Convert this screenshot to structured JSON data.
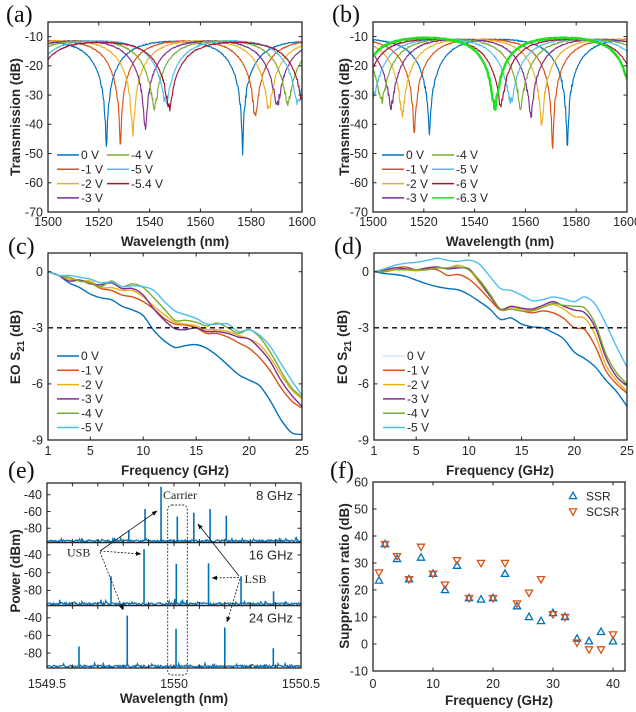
{
  "chart_data": [
    {
      "panel_label": "(a)",
      "type": "line",
      "title": "",
      "xlabel": "Wavelength (nm)",
      "ylabel": "Transmission (dB)",
      "xlim": [
        1500,
        1600
      ],
      "ylim": [
        -70,
        -5
      ],
      "xticks": [
        1500,
        1520,
        1540,
        1560,
        1580,
        1600
      ],
      "yticks": [
        -70,
        -60,
        -50,
        -40,
        -30,
        -20,
        -10
      ],
      "grid": false,
      "legend": "lower-left",
      "series": [
        {
          "name": "0 V",
          "color": "#0072BD",
          "max_transmission_db": -9.2,
          "resonances": [
            {
              "wavelength_nm": 1523.0,
              "min_db": -49
            },
            {
              "wavelength_nm": 1576.6,
              "min_db": -49
            }
          ]
        },
        {
          "name": "-1 V",
          "color": "#D95319",
          "max_transmission_db": -9.0,
          "resonances": [
            {
              "wavelength_nm": 1528.5,
              "min_db": -48
            },
            {
              "wavelength_nm": 1581.6,
              "min_db": -38
            }
          ]
        },
        {
          "name": "-2 V",
          "color": "#EDB120",
          "max_transmission_db": -9.0,
          "resonances": [
            {
              "wavelength_nm": 1533.4,
              "min_db": -44.5
            },
            {
              "wavelength_nm": 1586.9,
              "min_db": -35.5
            }
          ]
        },
        {
          "name": "-3 V",
          "color": "#7E2F8E",
          "max_transmission_db": -9.0,
          "resonances": [
            {
              "wavelength_nm": 1538.3,
              "min_db": -42
            },
            {
              "wavelength_nm": 1590.2,
              "min_db": -33.5
            }
          ]
        },
        {
          "name": "-4 V",
          "color": "#77AC30",
          "max_transmission_db": -9.0,
          "resonances": [
            {
              "wavelength_nm": 1541.9,
              "min_db": -35
            },
            {
              "wavelength_nm": 1594.4,
              "min_db": -33
            }
          ]
        },
        {
          "name": "-5 V",
          "color": "#4DBEEE",
          "max_transmission_db": -9.0,
          "resonances": [
            {
              "wavelength_nm": 1546.4,
              "min_db": -33.5
            },
            {
              "wavelength_nm": 1598.3,
              "min_db": -33
            }
          ]
        },
        {
          "name": "-5.4 V",
          "color": "#A2142F",
          "max_transmission_db": -9.5,
          "resonances": [
            {
              "wavelength_nm": 1547.7,
              "min_db": -34.5
            },
            {
              "wavelength_nm": 1600.5,
              "min_db": -33
            }
          ]
        }
      ]
    },
    {
      "panel_label": "(b)",
      "type": "line",
      "title": "",
      "xlabel": "Wavelength (nm)",
      "ylabel": "Transmission (dB)",
      "xlim": [
        1500,
        1600
      ],
      "ylim": [
        -70,
        -5
      ],
      "xticks": [
        1500,
        1520,
        1540,
        1560,
        1580,
        1600
      ],
      "yticks": [
        -70,
        -60,
        -50,
        -40,
        -30,
        -20,
        -10
      ],
      "grid": false,
      "legend": "lower-left",
      "series": [
        {
          "name": "0 V",
          "color": "#0072BD",
          "max_transmission_db": -8.5,
          "resonances": [
            {
              "wavelength_nm": 1522.2,
              "min_db": -42.5
            },
            {
              "wavelength_nm": 1576.5,
              "min_db": -51
            }
          ]
        },
        {
          "name": "-1 V",
          "color": "#D95319",
          "max_transmission_db": -8.5,
          "resonances": [
            {
              "wavelength_nm": 1516.3,
              "min_db": -42.5
            },
            {
              "wavelength_nm": 1570.7,
              "min_db": -52
            }
          ]
        },
        {
          "name": "-2 V",
          "color": "#EDB120",
          "max_transmission_db": -8.5,
          "resonances": [
            {
              "wavelength_nm": 1511.5,
              "min_db": -36.5
            },
            {
              "wavelength_nm": 1566.4,
              "min_db": -40.5
            }
          ]
        },
        {
          "name": "-3 V",
          "color": "#7E2F8E",
          "max_transmission_db": -8.5,
          "resonances": [
            {
              "wavelength_nm": 1507.1,
              "min_db": -34
            },
            {
              "wavelength_nm": 1562.1,
              "min_db": -37
            }
          ]
        },
        {
          "name": "-4 V",
          "color": "#77AC30",
          "max_transmission_db": -8.5,
          "resonances": [
            {
              "wavelength_nm": 1503.4,
              "min_db": -32
            },
            {
              "wavelength_nm": 1558.1,
              "min_db": -33.5
            }
          ]
        },
        {
          "name": "-5 V",
          "color": "#4DBEEE",
          "max_transmission_db": -8.5,
          "resonances": [
            {
              "wavelength_nm": 1500.2,
              "min_db": -30
            },
            {
              "wavelength_nm": 1554.2,
              "min_db": -32.5
            }
          ]
        },
        {
          "name": "-6 V",
          "color": "#A2142F",
          "max_transmission_db": -8.5,
          "resonances": [
            {
              "wavelength_nm": 1550.3,
              "min_db": -33
            },
            {
              "wavelength_nm": 1604.3,
              "min_db": -33
            }
          ]
        },
        {
          "name": "-6.3 V",
          "color": "#1FE01F",
          "max_transmission_db": -8.0,
          "resonances": [
            {
              "wavelength_nm": 1548.0,
              "min_db": -34
            },
            {
              "wavelength_nm": 1602.0,
              "min_db": -35
            }
          ]
        }
      ]
    },
    {
      "panel_label": "(c)",
      "type": "line",
      "title": "",
      "xlabel": "Frequency (GHz)",
      "ylabel": {
        "prefix": "EO S",
        "subscript": "21",
        "suffix": " (dB)"
      },
      "xlim": [
        1,
        25
      ],
      "ylim": [
        -9,
        1
      ],
      "xticks": [
        1,
        5,
        10,
        15,
        20,
        25
      ],
      "yticks": [
        -9,
        -6,
        -3,
        0
      ],
      "grid": false,
      "legend": "lower-left",
      "reference_lines": [
        {
          "y": -3,
          "style": "dashed",
          "color": "#000000"
        }
      ],
      "x": [
        1,
        2,
        3,
        4,
        5,
        6,
        7,
        8,
        9,
        10,
        11,
        12,
        13,
        14,
        15,
        16,
        17,
        18,
        19,
        20,
        21,
        22,
        23,
        24,
        25
      ],
      "series": [
        {
          "name": "0 V",
          "color": "#0072BD",
          "values": [
            0,
            -0.2,
            -0.6,
            -0.85,
            -1.2,
            -1.4,
            -1.5,
            -1.85,
            -2.05,
            -2.35,
            -3.15,
            -3.7,
            -4.05,
            -3.95,
            -3.9,
            -4.1,
            -4.5,
            -5.0,
            -5.5,
            -5.8,
            -6.1,
            -6.9,
            -7.9,
            -8.6,
            -8.7
          ]
        },
        {
          "name": "-1 V",
          "color": "#D95319",
          "values": [
            0,
            -0.2,
            -0.4,
            -0.45,
            -0.6,
            -0.9,
            -1.0,
            -1.25,
            -1.35,
            -1.6,
            -2.0,
            -2.5,
            -2.8,
            -2.85,
            -3.0,
            -3.3,
            -3.3,
            -3.5,
            -3.8,
            -4.1,
            -4.6,
            -5.3,
            -6.2,
            -6.9,
            -7.3
          ]
        },
        {
          "name": "-2 V",
          "color": "#EDB120",
          "values": [
            0,
            -0.2,
            -0.4,
            -0.5,
            -0.5,
            -0.85,
            -0.85,
            -1.0,
            -1.0,
            -1.35,
            -1.85,
            -2.3,
            -2.7,
            -2.8,
            -2.9,
            -3.1,
            -3.1,
            -3.2,
            -3.4,
            -3.6,
            -3.9,
            -4.6,
            -5.5,
            -6.3,
            -6.8
          ]
        },
        {
          "name": "-3 V",
          "color": "#7E2F8E",
          "values": [
            0,
            -0.2,
            -0.5,
            -0.45,
            -0.65,
            -0.7,
            -0.6,
            -0.9,
            -0.9,
            -1.25,
            -2.0,
            -2.6,
            -3.05,
            -3.1,
            -3.0,
            -3.2,
            -3.2,
            -3.3,
            -3.5,
            -3.6,
            -4.1,
            -4.8,
            -5.8,
            -6.6,
            -7.2
          ]
        },
        {
          "name": "-4 V",
          "color": "#77AC30",
          "values": [
            0,
            -0.2,
            -0.3,
            -0.5,
            -0.6,
            -0.8,
            -0.5,
            -0.8,
            -0.65,
            -0.85,
            -1.4,
            -2.0,
            -2.6,
            -2.6,
            -2.7,
            -2.9,
            -2.75,
            -3.0,
            -3.3,
            -3.1,
            -3.5,
            -4.3,
            -5.3,
            -6.2,
            -6.7
          ]
        },
        {
          "name": "-5 V",
          "color": "#4DBEEE",
          "values": [
            0,
            -0.2,
            -0.2,
            -0.3,
            -0.4,
            -0.6,
            -0.55,
            -0.8,
            -0.75,
            -0.8,
            -1.0,
            -1.6,
            -2.1,
            -2.3,
            -2.5,
            -2.8,
            -2.8,
            -2.8,
            -3.2,
            -3.1,
            -3.4,
            -4.0,
            -4.9,
            -5.8,
            -6.6
          ]
        }
      ]
    },
    {
      "panel_label": "(d)",
      "type": "line",
      "title": "",
      "xlabel": "Frequency (GHz)",
      "ylabel": {
        "prefix": "EO S",
        "subscript": "21",
        "suffix": " (dB)"
      },
      "xlim": [
        1,
        25
      ],
      "ylim": [
        -9,
        1
      ],
      "xticks": [
        1,
        5,
        10,
        15,
        20,
        25
      ],
      "yticks": [
        -9,
        -6,
        -3,
        0
      ],
      "grid": false,
      "legend": "lower-left",
      "reference_lines": [
        {
          "y": -3,
          "style": "dashed",
          "color": "#000000"
        }
      ],
      "x": [
        1,
        2,
        3,
        4,
        5,
        6,
        7,
        8,
        9,
        10,
        11,
        12,
        13,
        14,
        15,
        16,
        17,
        18,
        19,
        20,
        21,
        22,
        23,
        24,
        25
      ],
      "series": [
        {
          "name": "0 V",
          "color": "#0072BD",
          "legend_color": "#CFE8F5",
          "values": [
            0,
            -0.1,
            -0.15,
            -0.25,
            -0.45,
            -0.65,
            -0.8,
            -0.9,
            -0.97,
            -1.23,
            -1.6,
            -2.0,
            -2.55,
            -2.47,
            -2.8,
            -2.95,
            -3.0,
            -3.26,
            -3.6,
            -4.3,
            -4.65,
            -5.1,
            -5.8,
            -6.4,
            -7.2
          ]
        },
        {
          "name": "-1 V",
          "color": "#D95319",
          "values": [
            0,
            0.1,
            0.2,
            0.25,
            0.1,
            0.15,
            0.1,
            -0.2,
            -0.15,
            -0.4,
            -0.9,
            -1.5,
            -2.05,
            -2.0,
            -2.1,
            -2.2,
            -2.1,
            -2.2,
            -2.5,
            -3.0,
            -3.1,
            -4.0,
            -5.3,
            -6.0,
            -6.5
          ]
        },
        {
          "name": "-2 V",
          "color": "#EDB120",
          "values": [
            0,
            0.05,
            0.1,
            0.1,
            0.05,
            0.1,
            0.2,
            0.2,
            0.35,
            0.1,
            -0.6,
            -1.3,
            -2.0,
            -1.9,
            -2.0,
            -2.05,
            -1.9,
            -1.75,
            -2.0,
            -2.4,
            -2.5,
            -3.4,
            -5.0,
            -5.8,
            -6.4
          ]
        },
        {
          "name": "-3 V",
          "color": "#7E2F8E",
          "values": [
            0,
            0.1,
            0.2,
            0.15,
            0.1,
            0.2,
            0.25,
            0.15,
            0.2,
            0.15,
            -0.5,
            -1.3,
            -2.0,
            -1.85,
            -1.95,
            -2.0,
            -1.8,
            -1.6,
            -1.85,
            -2.05,
            -2.2,
            -3.0,
            -4.6,
            -5.6,
            -6.1
          ]
        },
        {
          "name": "-4 V",
          "color": "#77AC30",
          "values": [
            0,
            0.0,
            0.1,
            0.1,
            0.1,
            0.1,
            0.2,
            0.2,
            0.25,
            0.1,
            -0.45,
            -1.2,
            -2.0,
            -2.0,
            -2.1,
            -2.1,
            -1.9,
            -1.7,
            -1.8,
            -1.85,
            -1.95,
            -2.8,
            -4.4,
            -5.4,
            -6.0
          ]
        },
        {
          "name": "-5 V",
          "color": "#4DBEEE",
          "values": [
            0,
            0.15,
            0.35,
            0.45,
            0.5,
            0.6,
            0.72,
            0.6,
            0.55,
            0.62,
            0.4,
            -0.26,
            -0.9,
            -1.0,
            -1.25,
            -1.55,
            -1.5,
            -1.35,
            -1.45,
            -1.6,
            -1.35,
            -1.75,
            -2.8,
            -4.0,
            -5.1
          ]
        }
      ]
    },
    {
      "panel_label": "(e)",
      "type": "line",
      "title": "",
      "xlabel": "Wavelength (nm)",
      "ylabel": "Power (dBm)",
      "xlim": [
        1549.5,
        1550.5
      ],
      "ylim": [
        -97,
        -26
      ],
      "xticks": [
        1549.5,
        1550,
        1550.5
      ],
      "yticks": [
        -80,
        -60,
        -40
      ],
      "grid": false,
      "color": "#0072BD",
      "noise_floor_dbm": -95,
      "subplots": [
        {
          "label": "8 GHz",
          "peaks": [
            {
              "wavelength_nm": 1549.822,
              "power_dbm": -82.5
            },
            {
              "wavelength_nm": 1549.886,
              "power_dbm": -57
            },
            {
              "wavelength_nm": 1549.949,
              "power_dbm": -30.5
            },
            {
              "wavelength_nm": 1550.013,
              "power_dbm": -66
            },
            {
              "wavelength_nm": 1550.078,
              "power_dbm": -61.5
            },
            {
              "wavelength_nm": 1550.142,
              "power_dbm": -57
            },
            {
              "wavelength_nm": 1550.206,
              "power_dbm": -65
            }
          ]
        },
        {
          "label": "16 GHz",
          "peaks": [
            {
              "wavelength_nm": 1549.752,
              "power_dbm": -64
            },
            {
              "wavelength_nm": 1549.882,
              "power_dbm": -33.5
            },
            {
              "wavelength_nm": 1550.009,
              "power_dbm": -50
            },
            {
              "wavelength_nm": 1550.136,
              "power_dbm": -49.5
            },
            {
              "wavelength_nm": 1550.264,
              "power_dbm": -64
            },
            {
              "wavelength_nm": 1550.392,
              "power_dbm": -81
            }
          ]
        },
        {
          "label": "24 GHz",
          "peaks": [
            {
              "wavelength_nm": 1549.626,
              "power_dbm": -72.5
            },
            {
              "wavelength_nm": 1549.816,
              "power_dbm": -37.5
            },
            {
              "wavelength_nm": 1550.008,
              "power_dbm": -52.5
            },
            {
              "wavelength_nm": 1550.2,
              "power_dbm": -51
            },
            {
              "wavelength_nm": 1550.391,
              "power_dbm": -74.5
            }
          ]
        }
      ],
      "annotations": {
        "carrier": "Carrier",
        "usb": "USB",
        "lsb": "LSB"
      }
    },
    {
      "panel_label": "(f)",
      "type": "scatter",
      "title": "",
      "xlabel": "Frequency (GHz)",
      "ylabel": "Suppression ratio (dB)",
      "xlim": [
        0,
        42
      ],
      "ylim": [
        -10,
        60
      ],
      "xticks": [
        0,
        10,
        20,
        30,
        40
      ],
      "yticks": [
        -10,
        0,
        10,
        20,
        30,
        40,
        50,
        60
      ],
      "grid": false,
      "legend": "top-right",
      "x": [
        1,
        2,
        4,
        6,
        8,
        10,
        12,
        14,
        16,
        18,
        20,
        22,
        24,
        26,
        28,
        30,
        32,
        34,
        36,
        38,
        40
      ],
      "series": [
        {
          "name": "SSR",
          "marker": "triangle-up",
          "color": "#0072BD",
          "values": [
            23.5,
            37,
            31.5,
            24,
            32,
            26,
            20,
            29,
            17,
            16.5,
            17,
            26,
            14,
            10,
            8.5,
            11.5,
            10,
            2,
            1,
            4.5,
            1
          ]
        },
        {
          "name": "SCSR",
          "marker": "triangle-down",
          "color": "#D95319",
          "values": [
            26.5,
            37,
            32.5,
            24,
            36,
            26,
            22,
            31,
            17,
            30,
            17,
            30,
            15,
            19,
            24,
            11,
            10,
            0.5,
            -2,
            -2,
            3.5
          ]
        }
      ]
    }
  ]
}
